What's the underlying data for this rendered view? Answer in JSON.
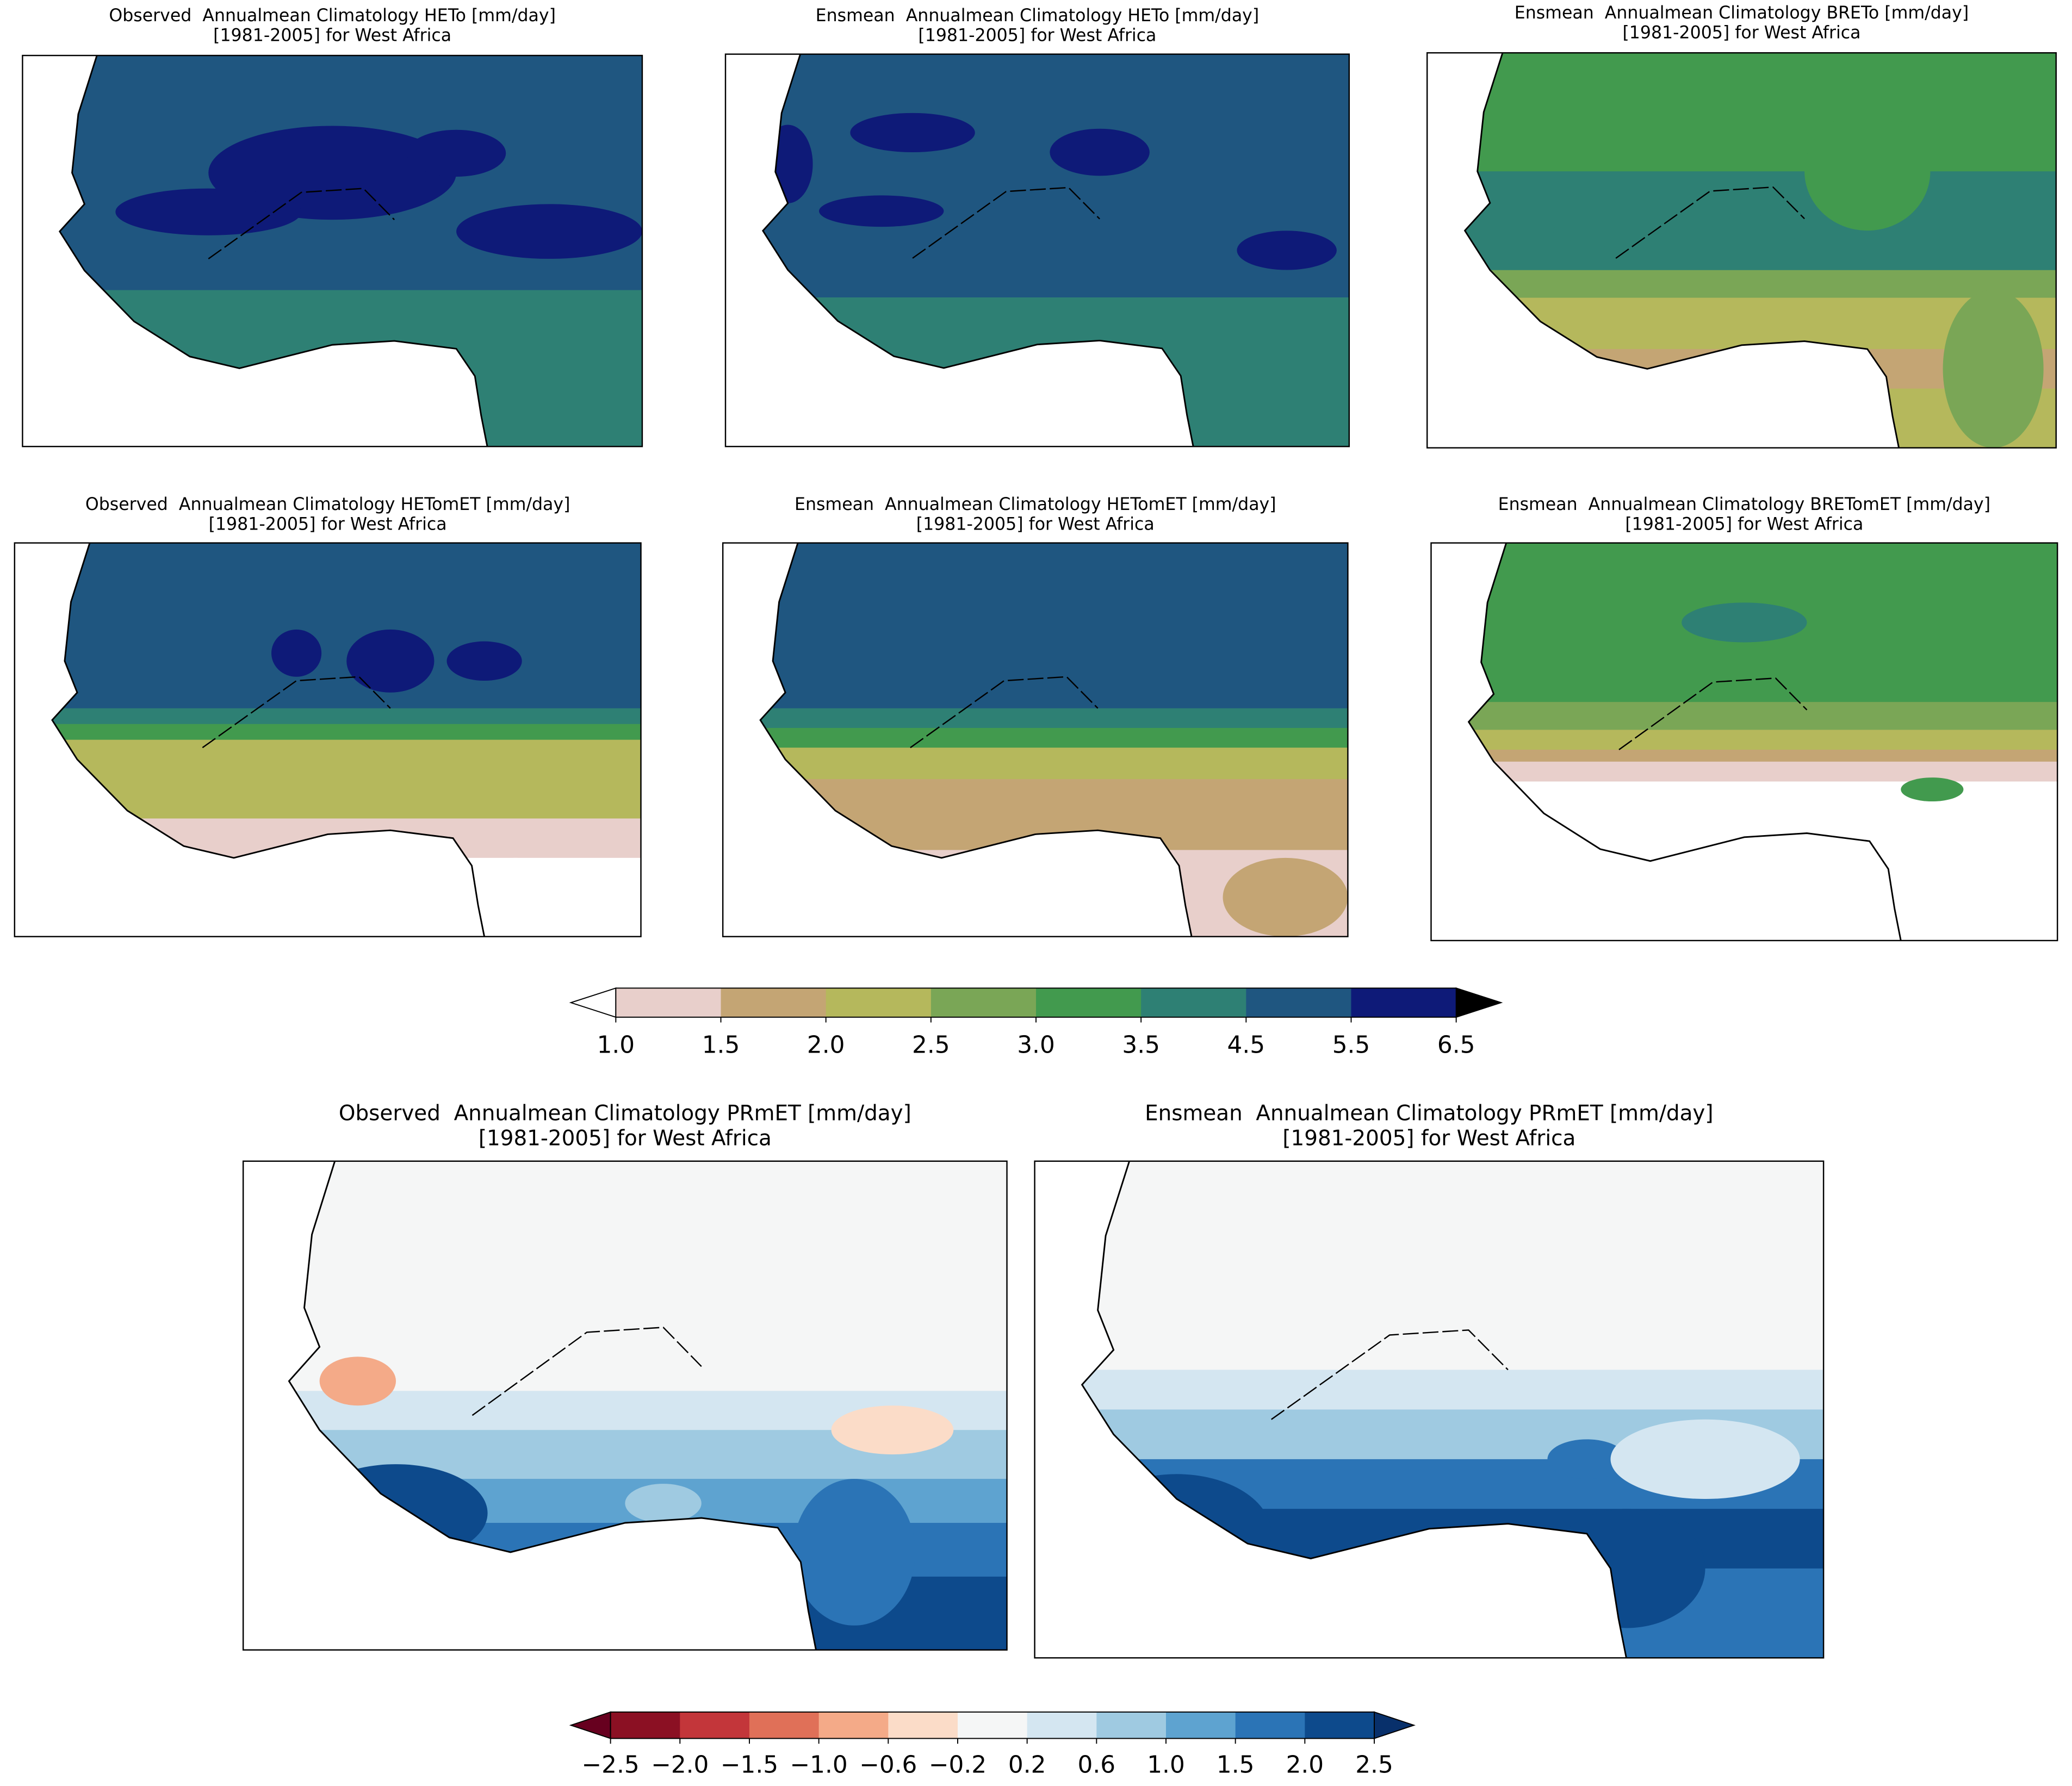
{
  "panels": [
    {
      "title": [
        "Observed  Annualmean Climatology HETo [mm/day]",
        "[1981-2005] for West Africa"
      ]
    },
    {
      "title": [
        "Ensmean  Annualmean Climatology HETo [mm/day]",
        "[1981-2005] for West Africa"
      ]
    },
    {
      "title": [
        "Ensmean  Annualmean Climatology BRETo [mm/day]",
        "[1981-2005] for West Africa"
      ]
    },
    {
      "title": [
        "Observed  Annualmean Climatology HETomET [mm/day]",
        "[1981-2005] for West Africa"
      ]
    },
    {
      "title": [
        "Ensmean  Annualmean Climatology HETomET [mm/day]",
        "[1981-2005] for West Africa"
      ]
    },
    {
      "title": [
        "Ensmean  Annualmean Climatology BRETomET [mm/day]",
        "[1981-2005] for West Africa"
      ]
    },
    {
      "title": [
        "Observed  Annualmean Climatology PRmET [mm/day]",
        "[1981-2005] for West Africa"
      ]
    },
    {
      "title": [
        "Ensmean  Annualmean Climatology PRmET [mm/day]",
        "[1981-2005] for West Africa"
      ]
    }
  ],
  "colorbars": [
    {
      "under": "#ffffff",
      "over": "#000000",
      "colors": [
        "#e8cfcb",
        "#c4a574",
        "#b5b85c",
        "#7aa656",
        "#429a4e",
        "#2e8074",
        "#1f5680",
        "#0e1a78"
      ],
      "ticks": [
        {
          "value": 1,
          "label": "1.0"
        },
        1.5,
        {
          "value": 2,
          "label": "2.0"
        },
        2.5,
        {
          "value": 3,
          "label": "3.0"
        },
        3.5,
        4.5,
        5.5,
        6.5
      ]
    },
    {
      "under": "#67001f",
      "over": "#08306b",
      "colors": [
        "#8b1023",
        "#c3363a",
        "#e07058",
        "#f4aa88",
        "#fbdcc8",
        "#f5f6f6",
        "#d4e6f1",
        "#9fcae1",
        "#5ea3d0",
        "#2b74b6",
        "#0d4a8c"
      ],
      "ticks": [
        {
          "value": -2.5,
          "label": "−2.5"
        },
        {
          "value": -2,
          "label": "−2.0"
        },
        {
          "value": -1.5,
          "label": "−1.5"
        },
        {
          "value": -1,
          "label": "−1.0"
        },
        {
          "value": -0.6,
          "label": "−0.6"
        },
        {
          "value": -0.2,
          "label": "−0.2"
        },
        0.2,
        0.6,
        {
          "value": 1,
          "label": "1.0"
        },
        1.5,
        {
          "value": 2,
          "label": "2.0"
        },
        2.5
      ]
    }
  ]
}
